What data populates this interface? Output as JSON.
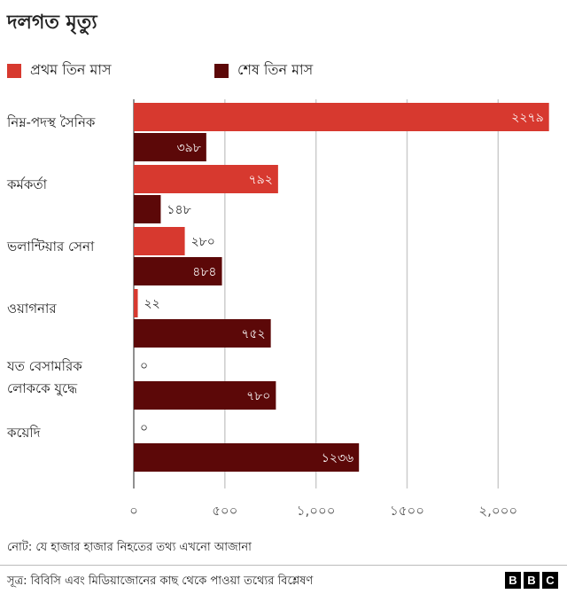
{
  "chart_data": {
    "type": "bar",
    "orientation": "horizontal",
    "title": "দলগত মৃত্যু",
    "categories": [
      [
        "নিম্ন-পদস্থ সৈনিক"
      ],
      [
        "কর্মকর্তা"
      ],
      [
        "ভলান্টিয়ার সেনা"
      ],
      [
        "ওয়াগনার"
      ],
      [
        "যত বেসামরিক",
        "লোককে  যুদ্ধে"
      ],
      [
        "কয়েদি"
      ]
    ],
    "series": [
      {
        "name": "প্রথম তিন মাস",
        "color": "#d7392f",
        "values": [
          2279,
          792,
          280,
          22,
          0,
          0
        ],
        "labels": [
          "২২৭৯",
          "৭৯২",
          "২৮০",
          "২২",
          "০",
          "০"
        ]
      },
      {
        "name": "শেষ তিন মাস",
        "color": "#5c0808",
        "values": [
          398,
          148,
          484,
          752,
          780,
          1236
        ],
        "labels": [
          "৩৯৮",
          "১৪৮",
          "৪৮৪",
          "৭৫২",
          "৭৮০",
          "১২৩৬"
        ]
      }
    ],
    "x_ticks": [
      0,
      500,
      1000,
      1500,
      2000
    ],
    "x_tick_labels": [
      "০",
      "৫০০",
      "১,০০০",
      "১৫০০",
      "২,০০০"
    ],
    "xlim": [
      0,
      2300
    ],
    "grid": true
  },
  "note": "নোট:  যে হাজার হাজার নিহতের  তথ্য এখনো আজানা",
  "source": "সূত্র: বিবিসি এবং মিডিয়াজোনের    কাছ থেকে পাওয়া তথ্যের বিশ্লেষণ",
  "logo": [
    "B",
    "B",
    "C"
  ]
}
